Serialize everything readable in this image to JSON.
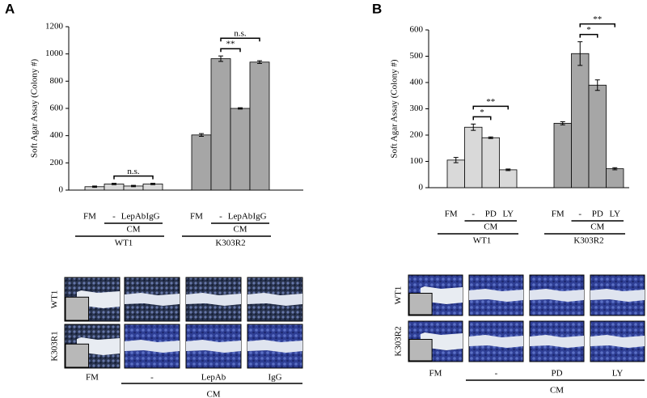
{
  "chart_data": [
    {
      "type": "bar",
      "panel": "A",
      "ylabel": "Soft Agar Assay (Colony #)",
      "ylim": [
        0,
        1200
      ],
      "yticks": [
        0,
        200,
        400,
        600,
        800,
        1000,
        1200
      ],
      "categories": [
        "FM",
        "-",
        "LepAb",
        "IgG"
      ],
      "subgroup_label": "CM",
      "series": [
        {
          "name": "WT1",
          "color": "#d9d9d9",
          "values": [
            25,
            45,
            30,
            45
          ],
          "errors": [
            5,
            5,
            5,
            5
          ]
        },
        {
          "name": "K303R2",
          "color": "#a6a6a6",
          "values": [
            405,
            965,
            600,
            940
          ],
          "errors": [
            10,
            20,
            5,
            10
          ]
        }
      ],
      "annotations": [
        {
          "text": "n.s.",
          "series": 0,
          "from": 1,
          "to": 3
        },
        {
          "text": "**",
          "series": 1,
          "from": 1,
          "to": 2
        },
        {
          "text": "n.s.",
          "series": 1,
          "from": 1,
          "to": 3
        }
      ]
    },
    {
      "type": "bar",
      "panel": "B",
      "ylabel": "Soft Agar Assay (Colony #)",
      "ylim": [
        0,
        600
      ],
      "yticks": [
        0,
        100,
        200,
        300,
        400,
        500,
        600
      ],
      "categories": [
        "FM",
        "-",
        "PD",
        "LY"
      ],
      "subgroup_label": "CM",
      "series": [
        {
          "name": "WT1",
          "color": "#d9d9d9",
          "values": [
            105,
            230,
            190,
            68
          ],
          "errors": [
            10,
            12,
            3,
            3
          ]
        },
        {
          "name": "K303R2",
          "color": "#a6a6a6",
          "values": [
            245,
            510,
            390,
            72
          ],
          "errors": [
            6,
            45,
            20,
            4
          ]
        }
      ],
      "annotations": [
        {
          "text": "*",
          "series": 0,
          "from": 1,
          "to": 2
        },
        {
          "text": "**",
          "series": 0,
          "from": 1,
          "to": 3
        },
        {
          "text": "*",
          "series": 1,
          "from": 1,
          "to": 2
        },
        {
          "text": "**",
          "series": 1,
          "from": 1,
          "to": 3
        }
      ]
    }
  ],
  "figure": {
    "image_panels": [
      {
        "rows": [
          "WT1",
          "K303R1"
        ],
        "columns": [
          "FM",
          "-",
          "LepAb",
          "IgG"
        ],
        "group_label": "CM"
      },
      {
        "rows": [
          "WT1",
          "K303R2"
        ],
        "columns": [
          "FM",
          "-",
          "PD",
          "LY"
        ],
        "group_label": "CM"
      }
    ]
  }
}
